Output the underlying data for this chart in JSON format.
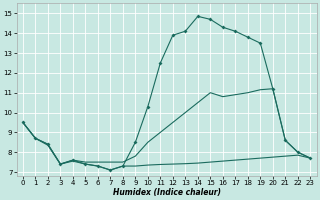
{
  "xlabel": "Humidex (Indice chaleur)",
  "xlim": [
    -0.5,
    23.5
  ],
  "ylim": [
    6.8,
    15.5
  ],
  "yticks": [
    7,
    8,
    9,
    10,
    11,
    12,
    13,
    14,
    15
  ],
  "xticks": [
    0,
    1,
    2,
    3,
    4,
    5,
    6,
    7,
    8,
    9,
    10,
    11,
    12,
    13,
    14,
    15,
    16,
    17,
    18,
    19,
    20,
    21,
    22,
    23
  ],
  "bg_color": "#c8e8e2",
  "line_color": "#1a6b5e",
  "line1_x": [
    0,
    1,
    2,
    3,
    4,
    5,
    6,
    7,
    8,
    9,
    10,
    11,
    12,
    13,
    14,
    15,
    16,
    17,
    18,
    19,
    20,
    21,
    22,
    23
  ],
  "line1_y": [
    9.5,
    8.7,
    8.4,
    7.4,
    7.6,
    7.4,
    7.3,
    7.1,
    7.3,
    8.5,
    10.3,
    12.5,
    13.9,
    14.1,
    14.85,
    14.7,
    14.3,
    14.1,
    13.8,
    13.5,
    11.2,
    8.6,
    8.0,
    7.7
  ],
  "line2_x": [
    0,
    1,
    2,
    3,
    4,
    5,
    6,
    7,
    8,
    9,
    10,
    11,
    12,
    13,
    14,
    15,
    16,
    17,
    18,
    19,
    20,
    21,
    22,
    23
  ],
  "line2_y": [
    9.5,
    8.7,
    8.35,
    7.4,
    7.55,
    7.4,
    7.3,
    7.1,
    7.3,
    7.3,
    7.35,
    7.38,
    7.4,
    7.42,
    7.45,
    7.5,
    7.55,
    7.6,
    7.65,
    7.7,
    7.75,
    7.8,
    7.85,
    7.7
  ],
  "line3_x": [
    0,
    1,
    2,
    3,
    4,
    5,
    6,
    7,
    8,
    9,
    10,
    11,
    12,
    13,
    14,
    15,
    16,
    17,
    18,
    19,
    20,
    21,
    22,
    23
  ],
  "line3_y": [
    9.5,
    8.7,
    8.4,
    7.4,
    7.6,
    7.5,
    7.5,
    7.5,
    7.5,
    7.8,
    8.5,
    9.0,
    9.5,
    10.0,
    10.5,
    11.0,
    10.8,
    10.9,
    11.0,
    11.15,
    11.2,
    8.6,
    8.0,
    7.7
  ]
}
